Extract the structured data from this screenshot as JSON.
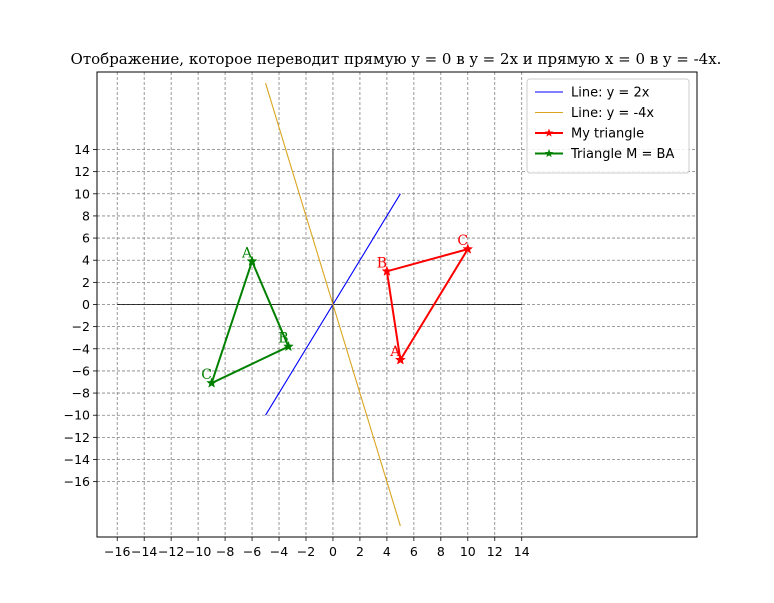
{
  "chart_data": {
    "type": "line",
    "title": "Отображение, которое переводит прямую y = 0 в y = 2x и прямую x = 0 в y = -4x.",
    "xlim": [
      -17.5,
      27
    ],
    "ylim": [
      -21,
      21
    ],
    "x_ticks": [
      -16,
      -14,
      -12,
      -10,
      -8,
      -6,
      -4,
      -2,
      0,
      2,
      4,
      6,
      8,
      10,
      12,
      14
    ],
    "x_tick_labels": [
      "−16",
      "−14",
      "−12",
      "−10",
      "−8",
      "−6",
      "−4",
      "−2",
      "0",
      "2",
      "4",
      "6",
      "8",
      "10",
      "12",
      "14"
    ],
    "y_ticks": [
      14,
      12,
      10,
      8,
      6,
      4,
      2,
      0,
      -2,
      -4,
      -6,
      -8,
      -10,
      -12,
      -14,
      -16
    ],
    "y_tick_labels": [
      "14",
      "12",
      "10",
      "8",
      "6",
      "4",
      "2",
      "0",
      "−2",
      "−4",
      "−6",
      "−8",
      "−10",
      "−12",
      "−14",
      "−16"
    ],
    "grid": true,
    "legend_position": "top-right",
    "axes_lines": [
      {
        "x": [
          -16,
          14
        ],
        "y": [
          0,
          0
        ],
        "color": "#000000"
      },
      {
        "x": [
          0,
          0
        ],
        "y": [
          -16,
          14
        ],
        "color": "#000000"
      }
    ],
    "series": [
      {
        "name": "Line: y = 2x",
        "color": "#0000ff",
        "marker": "none",
        "x": [
          -5,
          5
        ],
        "y": [
          -10,
          10
        ]
      },
      {
        "name": "Line: y = -4x",
        "color": "#daa520",
        "marker": "none",
        "x": [
          -5,
          5
        ],
        "y": [
          20,
          -20
        ]
      },
      {
        "name": "My triangle",
        "color": "#ff0000",
        "marker": "star",
        "x": [
          5,
          4,
          10,
          5
        ],
        "y": [
          -5,
          3,
          5,
          -5
        ]
      },
      {
        "name": "Triangle M = BA",
        "color": "#008000",
        "marker": "star",
        "x": [
          -6,
          -3.3,
          -9,
          -6
        ],
        "y": [
          3.9,
          -3.8,
          -7.1,
          3.9
        ]
      }
    ],
    "annotations": [
      {
        "text": "A",
        "x": 5,
        "y": -5,
        "color": "#ff0000"
      },
      {
        "text": "B",
        "x": 4,
        "y": 3,
        "color": "#ff0000"
      },
      {
        "text": "C",
        "x": 10,
        "y": 5,
        "color": "#ff0000"
      },
      {
        "text": "A",
        "x": -6,
        "y": 3.9,
        "color": "#008000"
      },
      {
        "text": "B",
        "x": -3.3,
        "y": -3.8,
        "color": "#008000"
      },
      {
        "text": "C",
        "x": -9,
        "y": -7.1,
        "color": "#008000"
      }
    ]
  }
}
